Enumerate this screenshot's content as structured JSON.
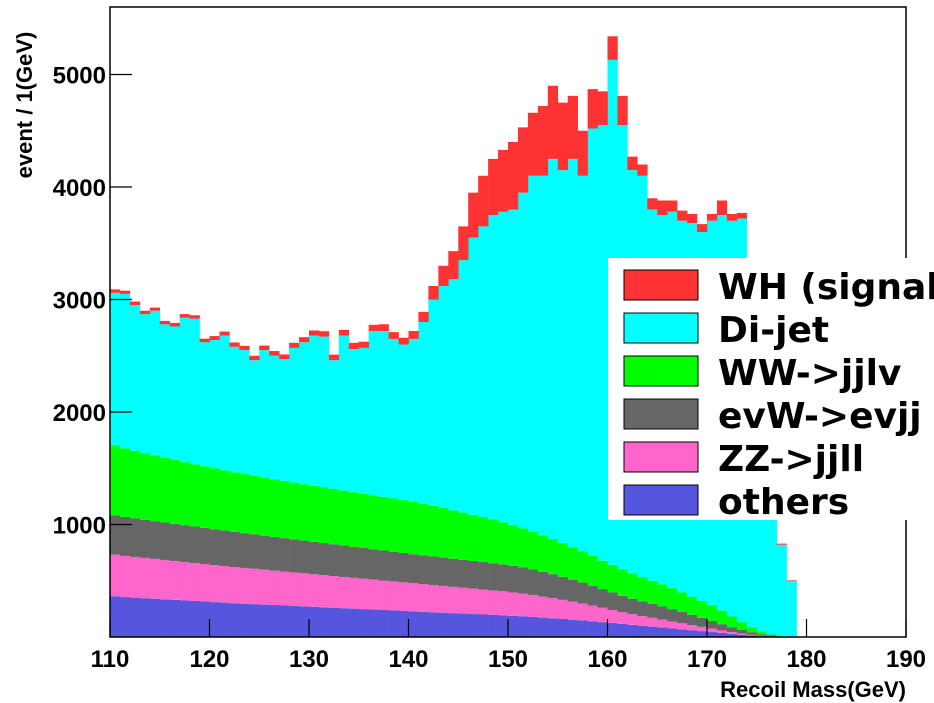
{
  "chart_data": {
    "type": "histogram",
    "stacked": true,
    "x_label": "Recoil Mass(GeV)",
    "y_label": "event / 1(GeV)",
    "xlim": [
      110,
      190
    ],
    "xticks": [
      110,
      120,
      130,
      140,
      150,
      160,
      170,
      180,
      190
    ],
    "ylim": [
      0,
      5600
    ],
    "yticks": [
      1000,
      2000,
      3000,
      4000,
      5000
    ],
    "legend": "right",
    "bins": [
      110,
      111,
      112,
      113,
      114,
      115,
      116,
      117,
      118,
      119,
      120,
      121,
      122,
      123,
      124,
      125,
      126,
      127,
      128,
      129,
      130,
      131,
      132,
      133,
      134,
      135,
      136,
      137,
      138,
      139,
      140,
      141,
      142,
      143,
      144,
      145,
      146,
      147,
      148,
      149,
      150,
      151,
      152,
      153,
      154,
      155,
      156,
      157,
      158,
      159,
      160,
      161,
      162,
      163,
      164,
      165,
      166,
      167,
      168,
      169,
      170,
      171,
      172,
      173,
      174,
      175,
      176,
      177,
      178,
      179,
      180
    ],
    "series": [
      {
        "name": "others",
        "color": "#5555dd",
        "values": [
          362,
          355,
          350,
          345,
          340,
          335,
          330,
          325,
          320,
          315,
          310,
          305,
          300,
          296,
          292,
          288,
          284,
          280,
          276,
          272,
          268,
          264,
          260,
          256,
          252,
          248,
          244,
          240,
          236,
          232,
          228,
          224,
          220,
          216,
          212,
          208,
          204,
          200,
          196,
          192,
          188,
          184,
          178,
          172,
          166,
          160,
          154,
          148,
          140,
          132,
          124,
          116,
          108,
          100,
          92,
          84,
          76,
          68,
          60,
          52,
          44,
          36,
          28,
          20,
          14,
          8,
          4,
          2,
          1,
          0
        ]
      },
      {
        "name": "ZZ->jjll",
        "color": "#ff66cc",
        "values": [
          370,
          366,
          362,
          358,
          354,
          350,
          346,
          342,
          338,
          334,
          330,
          326,
          322,
          318,
          314,
          310,
          306,
          302,
          298,
          294,
          290,
          286,
          282,
          278,
          274,
          270,
          266,
          262,
          258,
          254,
          250,
          246,
          242,
          238,
          234,
          230,
          226,
          222,
          218,
          214,
          208,
          202,
          196,
          188,
          180,
          170,
          160,
          150,
          140,
          128,
          116,
          104,
          94,
          86,
          78,
          70,
          62,
          54,
          46,
          38,
          30,
          22,
          15,
          10,
          6,
          3,
          1,
          0,
          0,
          0
        ]
      },
      {
        "name": "evW->evjj",
        "color": "#666666",
        "values": [
          350,
          346,
          342,
          339,
          336,
          333,
          330,
          327,
          324,
          321,
          318,
          315,
          312,
          309,
          306,
          303,
          300,
          297,
          294,
          291,
          288,
          285,
          282,
          279,
          276,
          273,
          270,
          267,
          264,
          261,
          258,
          256,
          254,
          252,
          250,
          248,
          246,
          244,
          242,
          240,
          236,
          232,
          226,
          220,
          212,
          204,
          196,
          186,
          176,
          166,
          156,
          146,
          138,
          130,
          124,
          118,
          110,
          100,
          90,
          80,
          68,
          56,
          44,
          32,
          22,
          14,
          8,
          4,
          2,
          0
        ]
      },
      {
        "name": "WW->jjlv",
        "color": "#00ff00",
        "values": [
          620,
          610,
          600,
          592,
          584,
          576,
          568,
          560,
          554,
          548,
          542,
          536,
          530,
          525,
          520,
          516,
          512,
          508,
          504,
          500,
          497,
          494,
          491,
          488,
          485,
          482,
          479,
          476,
          473,
          470,
          466,
          458,
          450,
          440,
          430,
          420,
          410,
          400,
          388,
          374,
          360,
          348,
          336,
          324,
          312,
          300,
          288,
          276,
          264,
          252,
          245,
          236,
          226,
          216,
          206,
          196,
          186,
          174,
          162,
          150,
          140,
          120,
          95,
          70,
          45,
          25,
          10,
          3,
          1,
          0
        ]
      },
      {
        "name": "Di-jet",
        "color": "#00ffff",
        "values": [
          1358,
          1373,
          1296,
          1236,
          1286,
          1186,
          1186,
          1286,
          1294,
          1102,
          1140,
          1198,
          1116,
          1102,
          1028,
          1133,
          1098,
          1083,
          1198,
          1263,
          1337,
          1341,
          1145,
          1379,
          1273,
          1297,
          1461,
          1475,
          1419,
          1383,
          1448,
          1616,
          1834,
          1974,
          2054,
          2244,
          2464,
          2584,
          2706,
          2760,
          2808,
          2984,
          3164,
          3196,
          3380,
          3316,
          3452,
          3340,
          3800,
          3872,
          4489,
          3948,
          3584,
          3568,
          3300,
          3282,
          3346,
          3304,
          3322,
          3280,
          3418,
          3516,
          3518,
          3588,
          2913,
          2150,
          1377,
          811,
          496,
          0
        ]
      },
      {
        "name": "WH (signal)",
        "color": "#ff3333",
        "values": [
          30,
          28,
          32,
          30,
          28,
          30,
          32,
          30,
          30,
          32,
          35,
          35,
          38,
          38,
          40,
          40,
          42,
          42,
          45,
          45,
          45,
          48,
          50,
          50,
          55,
          55,
          55,
          60,
          60,
          60,
          70,
          90,
          120,
          180,
          250,
          300,
          400,
          450,
          500,
          550,
          600,
          580,
          560,
          620,
          650,
          600,
          560,
          400,
          350,
          300,
          210,
          260,
          120,
          100,
          100,
          130,
          100,
          90,
          80,
          70,
          60,
          130,
          60,
          50,
          40,
          30,
          20,
          10,
          5,
          0
        ]
      }
    ]
  }
}
